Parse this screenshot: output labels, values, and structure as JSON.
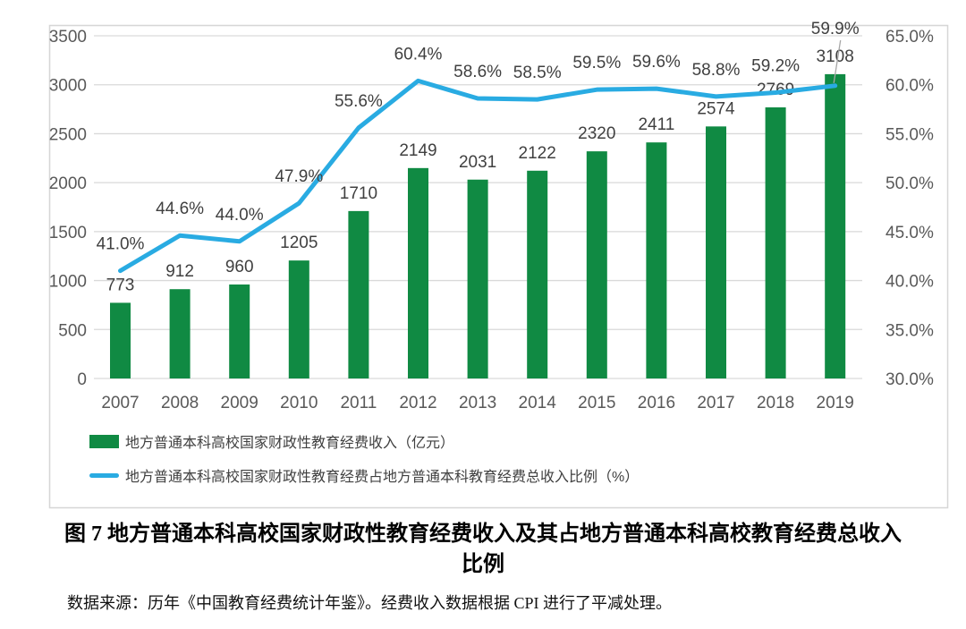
{
  "chart_data": {
    "type": "bar",
    "combo": "bar+line",
    "categories": [
      "2007",
      "2008",
      "2009",
      "2010",
      "2011",
      "2012",
      "2013",
      "2014",
      "2015",
      "2016",
      "2017",
      "2018",
      "2019"
    ],
    "series": [
      {
        "name": "地方普通本科高校国家财政性教育经费收入（亿元）",
        "type": "bar",
        "axis": "left",
        "color": "#108A43",
        "values": [
          773,
          912,
          960,
          1205,
          1710,
          2149,
          2031,
          2122,
          2320,
          2411,
          2574,
          2769,
          3108
        ],
        "labels": [
          "773",
          "912",
          "960",
          "1205",
          "1710",
          "2149",
          "2031",
          "2122",
          "2320",
          "2411",
          "2574",
          "2769",
          "3108"
        ]
      },
      {
        "name": "地方普通本科高校国家财政性教育经费占地方普通本科教育经费总收入比例（%）",
        "type": "line",
        "axis": "right",
        "color": "#29ABE2",
        "values": [
          41.0,
          44.6,
          44.0,
          47.9,
          55.6,
          60.4,
          58.6,
          58.5,
          59.5,
          59.6,
          58.8,
          59.2,
          59.9
        ],
        "labels": [
          "41.0%",
          "44.6%",
          "44.0%",
          "47.9%",
          "55.6%",
          "60.4%",
          "58.6%",
          "58.5%",
          "59.5%",
          "59.6%",
          "58.8%",
          "59.2%",
          "59.9%"
        ]
      }
    ],
    "left_axis": {
      "min": 0,
      "max": 3500,
      "step": 500,
      "tick_labels": [
        "3500",
        "3000",
        "2500",
        "2000",
        "1500",
        "1000",
        "500",
        "0"
      ]
    },
    "right_axis": {
      "min": 30,
      "max": 65,
      "step": 5,
      "tick_labels": [
        "65.0%",
        "60.0%",
        "55.0%",
        "50.0%",
        "45.0%",
        "40.0%",
        "35.0%",
        "30.0%"
      ]
    },
    "grid": "horizontal-only",
    "legend_position": "bottom-left",
    "title": "",
    "xlabel": "",
    "ylabel": ""
  },
  "colors": {
    "bar": "#108A43",
    "line": "#29ABE2",
    "grid": "#D9D9D9",
    "panel_border": "#D6D6D6",
    "axis_text": "#595959",
    "label_text": "#404040",
    "leader": "#A6A6A6"
  },
  "caption": {
    "line1": "图 7  地方普通本科高校国家财政性教育经费收入及其占地方普通本科高校教育经费总收入",
    "line2": "比例"
  },
  "source": {
    "text": "数据来源：历年《中国教育经费统计年鉴》。经费收入数据根据 CPI 进行了平减处理。"
  }
}
